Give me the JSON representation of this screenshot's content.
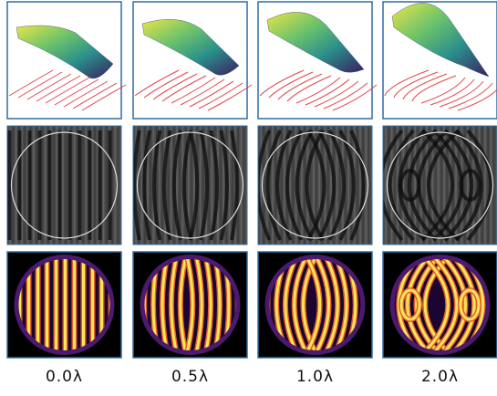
{
  "labels": [
    "0.0λ",
    "0.5λ",
    "1.0λ",
    "2.0λ"
  ]
}
